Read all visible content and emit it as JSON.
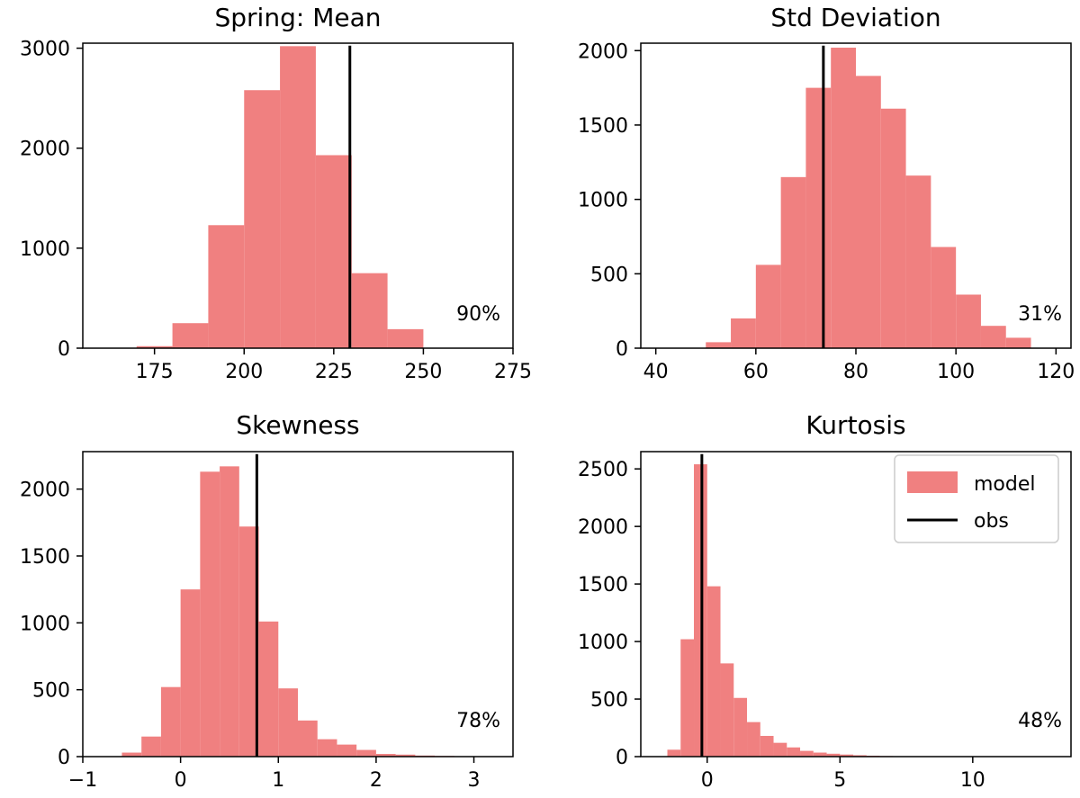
{
  "legend": {
    "model_color": "#F08080",
    "obs_color": "#000000",
    "model_label": "model",
    "obs_label": "obs"
  },
  "chart_data": [
    {
      "type": "bar",
      "title": "Spring: Mean",
      "xlabel": "",
      "ylabel": "",
      "xlim": [
        155,
        275
      ],
      "ylim": [
        0,
        3050
      ],
      "xticks": [
        175,
        200,
        225,
        250,
        275
      ],
      "yticks": [
        0,
        1000,
        2000,
        3000
      ],
      "bins": [
        {
          "x0": 170,
          "x1": 180,
          "count": 20
        },
        {
          "x0": 180,
          "x1": 190,
          "count": 250
        },
        {
          "x0": 190,
          "x1": 200,
          "count": 1230
        },
        {
          "x0": 200,
          "x1": 210,
          "count": 2580
        },
        {
          "x0": 210,
          "x1": 220,
          "count": 3020
        },
        {
          "x0": 220,
          "x1": 230,
          "count": 1930
        },
        {
          "x0": 230,
          "x1": 240,
          "count": 750
        },
        {
          "x0": 240,
          "x1": 250,
          "count": 190
        }
      ],
      "obs": 229.5,
      "percentile": "90%"
    },
    {
      "type": "bar",
      "title": "Std Deviation",
      "xlabel": "",
      "ylabel": "",
      "xlim": [
        37,
        123
      ],
      "ylim": [
        0,
        2050
      ],
      "xticks": [
        40,
        60,
        80,
        100,
        120
      ],
      "yticks": [
        0,
        500,
        1000,
        1500,
        2000
      ],
      "bins": [
        {
          "x0": 50,
          "x1": 55,
          "count": 40
        },
        {
          "x0": 55,
          "x1": 60,
          "count": 200
        },
        {
          "x0": 60,
          "x1": 65,
          "count": 560
        },
        {
          "x0": 65,
          "x1": 70,
          "count": 1150
        },
        {
          "x0": 70,
          "x1": 75,
          "count": 1750
        },
        {
          "x0": 75,
          "x1": 80,
          "count": 2020
        },
        {
          "x0": 80,
          "x1": 85,
          "count": 1830
        },
        {
          "x0": 85,
          "x1": 90,
          "count": 1610
        },
        {
          "x0": 90,
          "x1": 95,
          "count": 1160
        },
        {
          "x0": 95,
          "x1": 100,
          "count": 680
        },
        {
          "x0": 100,
          "x1": 105,
          "count": 360
        },
        {
          "x0": 105,
          "x1": 110,
          "count": 150
        },
        {
          "x0": 110,
          "x1": 115,
          "count": 70
        }
      ],
      "obs": 73.5,
      "percentile": "31%"
    },
    {
      "type": "bar",
      "title": "Skewness",
      "xlabel": "",
      "ylabel": "",
      "xlim": [
        -1,
        3.4
      ],
      "ylim": [
        0,
        2280
      ],
      "xticks": [
        -1,
        0,
        1,
        2,
        3
      ],
      "yticks": [
        0,
        500,
        1000,
        1500,
        2000
      ],
      "bins": [
        {
          "x0": -0.6,
          "x1": -0.4,
          "count": 30
        },
        {
          "x0": -0.4,
          "x1": -0.2,
          "count": 150
        },
        {
          "x0": -0.2,
          "x1": 0.0,
          "count": 520
        },
        {
          "x0": 0.0,
          "x1": 0.2,
          "count": 1250
        },
        {
          "x0": 0.2,
          "x1": 0.4,
          "count": 2130
        },
        {
          "x0": 0.4,
          "x1": 0.6,
          "count": 2170
        },
        {
          "x0": 0.6,
          "x1": 0.8,
          "count": 1720
        },
        {
          "x0": 0.8,
          "x1": 1.0,
          "count": 1010
        },
        {
          "x0": 1.0,
          "x1": 1.2,
          "count": 510
        },
        {
          "x0": 1.2,
          "x1": 1.4,
          "count": 270
        },
        {
          "x0": 1.4,
          "x1": 1.6,
          "count": 130
        },
        {
          "x0": 1.6,
          "x1": 1.8,
          "count": 90
        },
        {
          "x0": 1.8,
          "x1": 2.0,
          "count": 50
        },
        {
          "x0": 2.0,
          "x1": 2.2,
          "count": 20
        },
        {
          "x0": 2.2,
          "x1": 2.4,
          "count": 15
        },
        {
          "x0": 2.4,
          "x1": 2.6,
          "count": 8
        },
        {
          "x0": 2.6,
          "x1": 2.8,
          "count": 5
        }
      ],
      "obs": 0.78,
      "percentile": "78%"
    },
    {
      "type": "bar",
      "title": "Kurtosis",
      "xlabel": "",
      "ylabel": "",
      "xlim": [
        -2.5,
        13.7
      ],
      "ylim": [
        0,
        2650
      ],
      "xticks": [
        0,
        5,
        10
      ],
      "yticks": [
        0,
        500,
        1000,
        1500,
        2000,
        2500
      ],
      "bins": [
        {
          "x0": -1.5,
          "x1": -1.0,
          "count": 60
        },
        {
          "x0": -1.0,
          "x1": -0.5,
          "count": 1020
        },
        {
          "x0": -0.5,
          "x1": 0.0,
          "count": 2540
        },
        {
          "x0": 0.0,
          "x1": 0.5,
          "count": 1480
        },
        {
          "x0": 0.5,
          "x1": 1.0,
          "count": 810
        },
        {
          "x0": 1.0,
          "x1": 1.5,
          "count": 510
        },
        {
          "x0": 1.5,
          "x1": 2.0,
          "count": 300
        },
        {
          "x0": 2.0,
          "x1": 2.5,
          "count": 180
        },
        {
          "x0": 2.5,
          "x1": 3.0,
          "count": 120
        },
        {
          "x0": 3.0,
          "x1": 3.5,
          "count": 80
        },
        {
          "x0": 3.5,
          "x1": 4.0,
          "count": 50
        },
        {
          "x0": 4.0,
          "x1": 4.5,
          "count": 35
        },
        {
          "x0": 4.5,
          "x1": 5.0,
          "count": 25
        },
        {
          "x0": 5.0,
          "x1": 5.5,
          "count": 18
        },
        {
          "x0": 5.5,
          "x1": 6.0,
          "count": 12
        },
        {
          "x0": 6.0,
          "x1": 6.5,
          "count": 8
        },
        {
          "x0": 6.5,
          "x1": 7.0,
          "count": 5
        },
        {
          "x0": 7.0,
          "x1": 7.5,
          "count": 3
        }
      ],
      "obs": -0.2,
      "percentile": "48%",
      "legend": "top-right"
    }
  ]
}
